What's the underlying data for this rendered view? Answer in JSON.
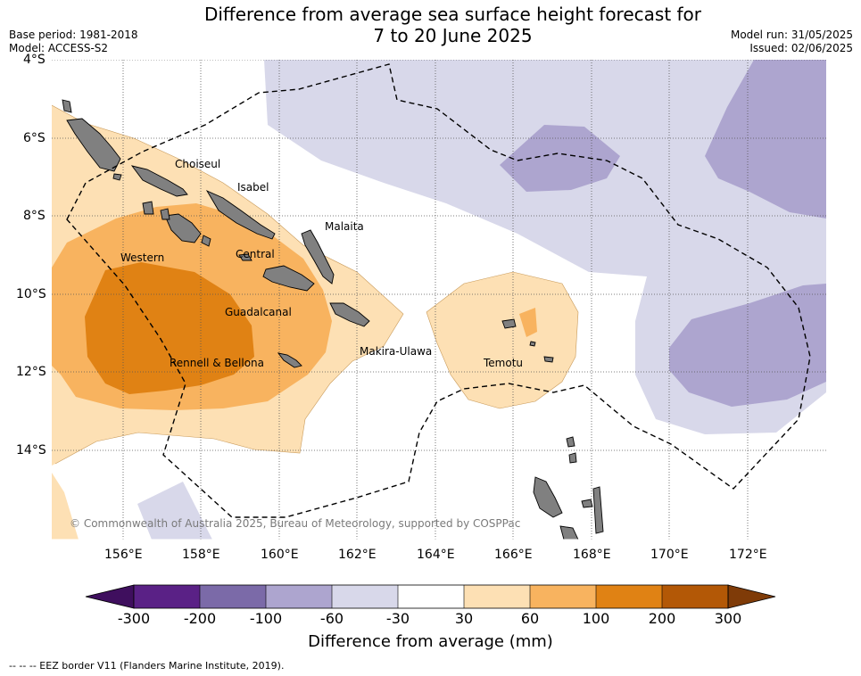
{
  "title": {
    "line1": "Difference from average sea surface height forecast for",
    "line2": "7 to 20 June 2025"
  },
  "meta": {
    "base_period": "Base period: 1981-2018",
    "model": "Model: ACCESS-S2",
    "model_run": "Model run: 31/05/2025",
    "issued": "Issued: 02/06/2025"
  },
  "map": {
    "lat_labels": [
      "4°S",
      "6°S",
      "8°S",
      "10°S",
      "12°S",
      "14°S"
    ],
    "lon_labels": [
      "156°E",
      "158°E",
      "160°E",
      "162°E",
      "164°E",
      "166°E",
      "168°E",
      "170°E",
      "172°E"
    ],
    "regions": [
      "Choiseul",
      "Isabel",
      "Malaita",
      "Western",
      "Central",
      "Guadalcanal",
      "Makira-Ulawa",
      "Rennell & Bellona",
      "Temotu"
    ],
    "copyright": "© Commonwealth of Australia 2025, Bureau of Meteorology, supported by COSPPac",
    "land_color": "#808080",
    "eez_line": "dashed black"
  },
  "colorbar": {
    "ticks": [
      "-300",
      "-200",
      "-100",
      "-60",
      "-30",
      "30",
      "60",
      "100",
      "200",
      "300"
    ],
    "colors": [
      "#3f0f5e",
      "#5a2186",
      "#7b6aa8",
      "#ada5cf",
      "#d8d8ea",
      "#ffffff",
      "#fde0b4",
      "#f8b35f",
      "#e08214",
      "#b35806",
      "#7f3b08"
    ],
    "label": "Difference from average (mm)"
  },
  "footer": {
    "eez_note": "-- -- -- EEZ border V11 (Flanders Marine Institute, 2019)."
  }
}
